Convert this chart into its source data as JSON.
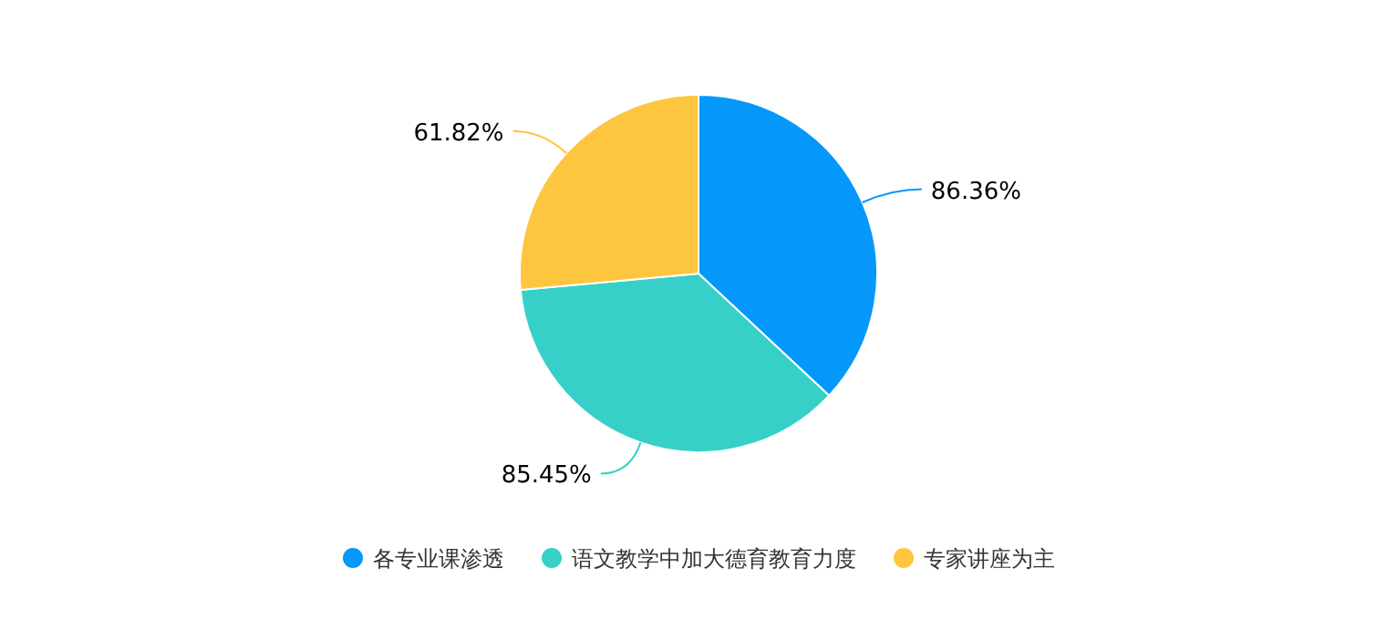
{
  "chart_data": {
    "type": "pie",
    "categories": [
      "各专业课渗透",
      "语文教学中加大德育教育力度",
      "专家讲座为主"
    ],
    "values": [
      86.36,
      85.45,
      61.82
    ],
    "colors": [
      "#0598fa",
      "#36d0c9",
      "#fec53f"
    ],
    "value_labels": [
      "86.36%",
      "85.45%",
      "61.82%"
    ],
    "legend": "bottom"
  }
}
